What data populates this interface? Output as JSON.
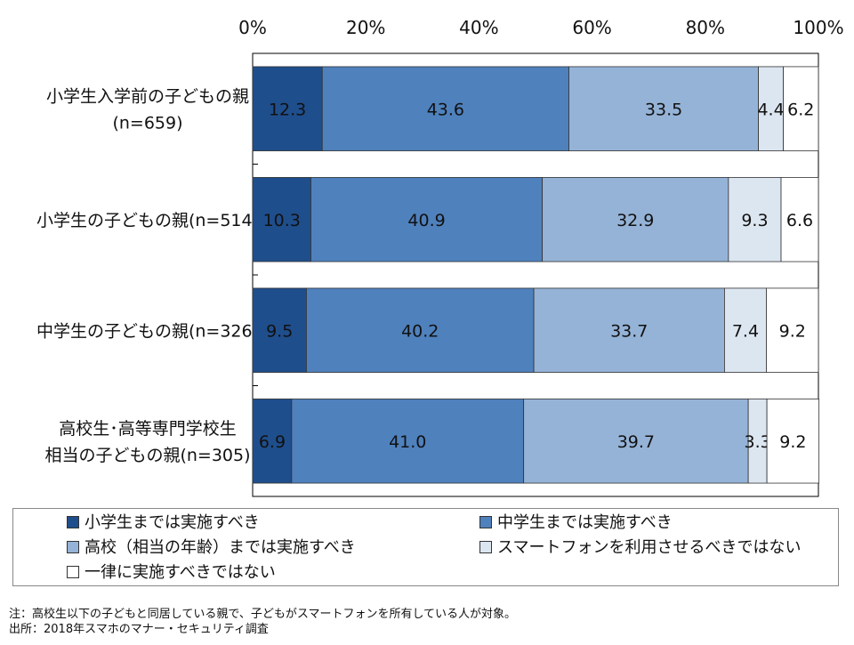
{
  "chart_data": {
    "type": "bar",
    "orientation": "horizontal",
    "stacked": true,
    "xlim": [
      0,
      100
    ],
    "x_ticks": [
      "0%",
      "20%",
      "40%",
      "60%",
      "80%",
      "100%"
    ],
    "categories": [
      [
        "小学生入学前の子どもの親",
        "(n=659)"
      ],
      [
        "小学生の子どもの親(n=514)"
      ],
      [
        "中学生の子どもの親(n=326)"
      ],
      [
        "高校生･高等専門学校生",
        "相当の子どもの親(n=305)"
      ]
    ],
    "series": [
      {
        "name": "小学生までは実施すべき",
        "color": "#1f4e8c",
        "values": [
          12.3,
          10.3,
          9.5,
          6.9
        ]
      },
      {
        "name": "中学生までは実施すべき",
        "color": "#4f81bd",
        "values": [
          43.6,
          40.9,
          40.2,
          41.0
        ]
      },
      {
        "name": "高校（相当の年齢）までは実施すべき",
        "color": "#95b3d7",
        "values": [
          33.5,
          32.9,
          33.7,
          39.7
        ]
      },
      {
        "name": "スマートフォンを利用させるべきではない",
        "color": "#dce6f1",
        "values": [
          4.4,
          9.3,
          7.4,
          3.3
        ]
      },
      {
        "name": "一律に実施すべきではない",
        "color": "#ffffff",
        "values": [
          6.2,
          6.6,
          9.2,
          9.2
        ]
      }
    ],
    "data_labels": [
      [
        "12.3",
        "43.6",
        "33.5",
        "4.4",
        "6.2"
      ],
      [
        "10.3",
        "40.9",
        "32.9",
        "9.3",
        "6.6"
      ],
      [
        "9.5",
        "40.2",
        "33.7",
        "7.4",
        "9.2"
      ],
      [
        "6.9",
        "41.0",
        "39.7",
        "3.3",
        "9.2"
      ]
    ],
    "legend_position": "bottom"
  },
  "notes": {
    "note": "注：高校生以下の子どもと同居している親で、子どもがスマートフォンを所有している人が対象。",
    "source": "出所：2018年スマホのマナー・セキュリティ調査"
  }
}
